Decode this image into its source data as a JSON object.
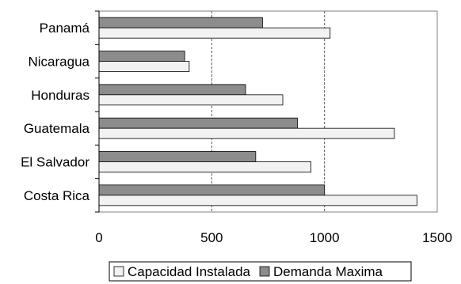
{
  "chart_data": {
    "type": "bar",
    "orientation": "horizontal",
    "categories": [
      "Panamá",
      "Nicaragua",
      "Honduras",
      "Guatemala",
      "El Salvador",
      "Costa Rica"
    ],
    "series": [
      {
        "name": "Capacidad Instalada",
        "values": [
          1025,
          400,
          815,
          1310,
          940,
          1410
        ],
        "color": "#f2f2f2"
      },
      {
        "name": "Demanda Maxima",
        "values": [
          725,
          380,
          650,
          880,
          695,
          1000
        ],
        "color": "#8c8c8c"
      }
    ],
    "title": "",
    "xlabel": "",
    "ylabel": "",
    "xlim": [
      0,
      1500
    ],
    "xticks": [
      0,
      500,
      1000,
      1500
    ],
    "grid": "vertical-dashed",
    "legend": "bottom"
  }
}
